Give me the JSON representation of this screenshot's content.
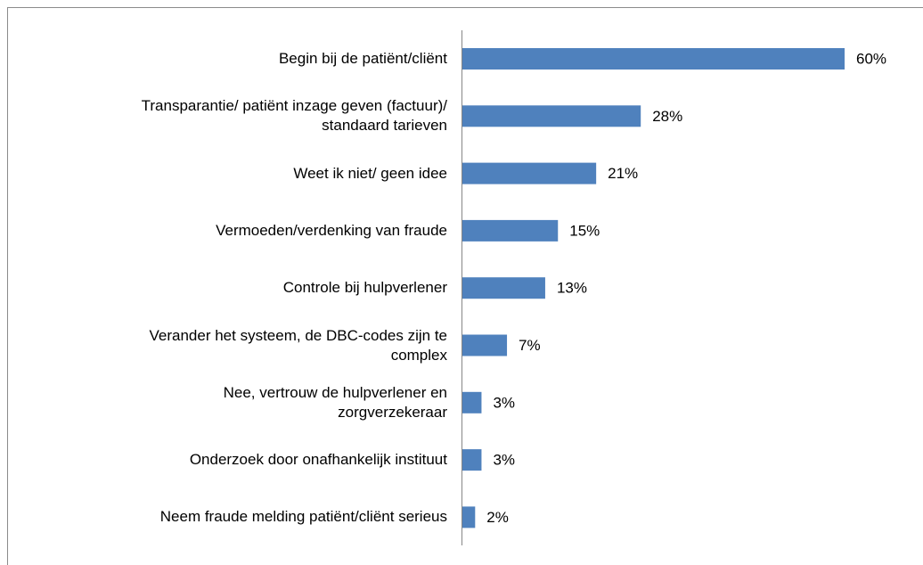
{
  "chart_data": {
    "type": "barh",
    "categories": [
      "Begin bij de patiënt/cliënt",
      "Transparantie/ patiënt inzage geven (factuur)/\nstandaard tarieven",
      "Weet ik niet/ geen idee",
      "Vermoeden/verdenking van fraude",
      "Controle bij hulpverlener",
      "Verander het systeem, de DBC-codes zijn te\ncomplex",
      "Nee, vertrouw de hulpverlener en\nzorgverzekeraar",
      "Onderzoek door onafhankelijk instituut",
      "Neem fraude melding patiënt/cliënt serieus"
    ],
    "values": [
      60,
      28,
      21,
      15,
      13,
      7,
      3,
      3,
      2
    ],
    "value_labels": [
      "60%",
      "28%",
      "21%",
      "15%",
      "13%",
      "7%",
      "3%",
      "3%",
      "2%"
    ],
    "color": "#4f81bd"
  }
}
